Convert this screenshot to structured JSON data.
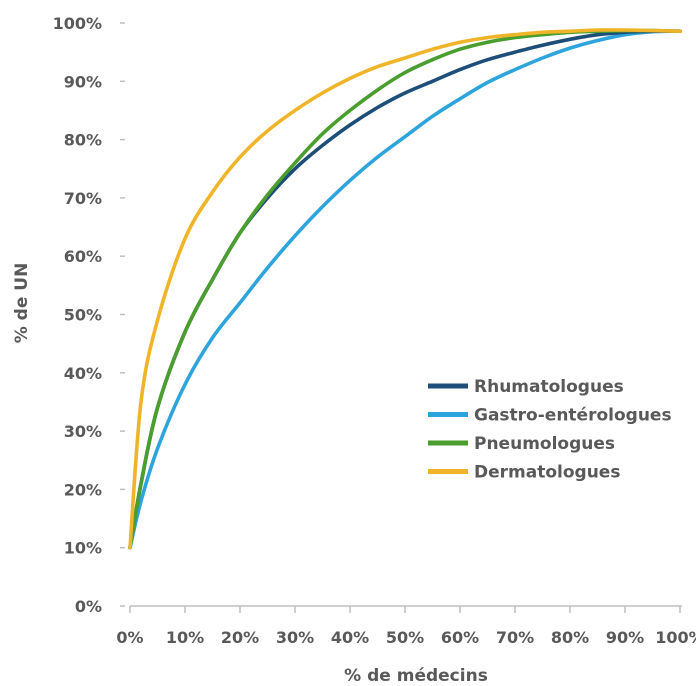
{
  "chart_data": {
    "type": "line",
    "title": "",
    "xlabel": "% de médecins",
    "ylabel": "% de UN",
    "x_ticks": [
      "0%",
      "10%",
      "20%",
      "30%",
      "40%",
      "50%",
      "60%",
      "70%",
      "80%",
      "90%",
      "100%"
    ],
    "y_ticks": [
      "0%",
      "10%",
      "20%",
      "30%",
      "40%",
      "50%",
      "60%",
      "70%",
      "80%",
      "90%",
      "100%"
    ],
    "xlim": [
      0,
      100
    ],
    "ylim": [
      0,
      100
    ],
    "grid": false,
    "legend_position": "center-right",
    "series": [
      {
        "name": "Rhumatologues",
        "color": "#1d4e79",
        "x": [
          0,
          2,
          5,
          10,
          15,
          20,
          25,
          30,
          35,
          40,
          45,
          50,
          55,
          60,
          65,
          70,
          75,
          80,
          85,
          90,
          95,
          100
        ],
        "y": [
          10,
          21,
          34,
          47,
          56,
          64,
          70,
          75,
          79,
          82.5,
          85.5,
          88,
          90,
          92,
          93.7,
          95,
          96.2,
          97.2,
          98,
          98.4,
          98.6,
          98.6
        ]
      },
      {
        "name": "Gastro-entérologues",
        "color": "#2ea4dc",
        "x": [
          0,
          2,
          5,
          10,
          15,
          20,
          25,
          30,
          35,
          40,
          45,
          50,
          55,
          60,
          65,
          70,
          75,
          80,
          85,
          90,
          95,
          100
        ],
        "y": [
          10,
          18,
          27,
          38,
          46,
          52,
          58,
          63.5,
          68.5,
          73,
          77,
          80.5,
          84,
          87,
          89.8,
          92,
          94,
          95.7,
          97,
          98,
          98.5,
          98.6
        ]
      },
      {
        "name": "Pneumologues",
        "color": "#4a9e2d",
        "x": [
          0,
          2,
          5,
          10,
          15,
          20,
          25,
          30,
          35,
          40,
          45,
          50,
          55,
          60,
          65,
          70,
          75,
          80,
          85,
          90,
          95,
          100
        ],
        "y": [
          10,
          21,
          34,
          47,
          56,
          64,
          70.5,
          76,
          81,
          85,
          88.5,
          91.5,
          93.7,
          95.5,
          96.7,
          97.5,
          98,
          98.4,
          98.6,
          98.7,
          98.7,
          98.6
        ]
      },
      {
        "name": "Dermatologues",
        "color": "#f0b429",
        "x": [
          0,
          2,
          5,
          10,
          15,
          20,
          25,
          30,
          35,
          40,
          45,
          50,
          55,
          60,
          65,
          70,
          75,
          80,
          85,
          90,
          95,
          100
        ],
        "y": [
          10,
          35,
          49,
          63,
          71,
          77,
          81.5,
          85,
          88,
          90.5,
          92.5,
          94,
          95.5,
          96.7,
          97.5,
          98,
          98.4,
          98.6,
          98.8,
          98.8,
          98.7,
          98.6
        ]
      }
    ]
  }
}
